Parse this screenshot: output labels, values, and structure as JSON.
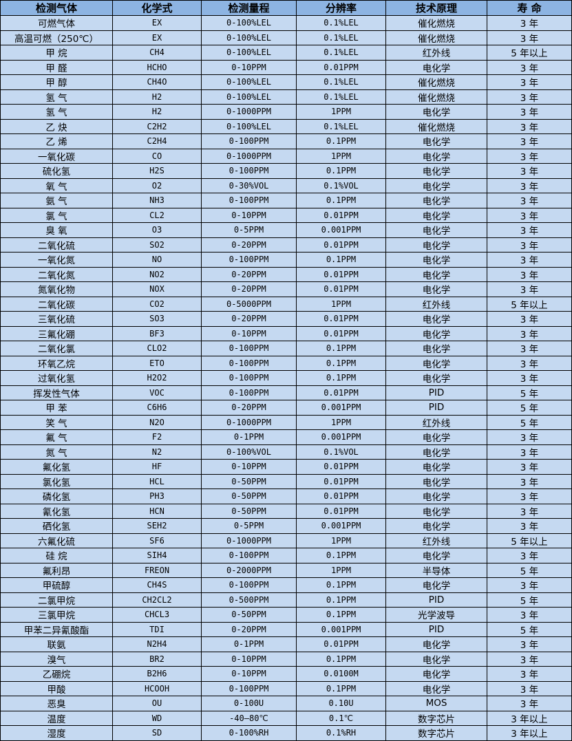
{
  "colors": {
    "header_bg": "#8db4e2",
    "cell_bg": "#c5d9f1",
    "border": "#000000"
  },
  "headers": [
    "检测气体",
    "化学式",
    "检测量程",
    "分辨率",
    "技术原理",
    "寿 命"
  ],
  "rows": [
    [
      "可燃气体",
      "EX",
      "0-100%LEL",
      "0.1%LEL",
      "催化燃烧",
      "3 年"
    ],
    [
      "高温可燃（250℃）",
      "EX",
      "0-100%LEL",
      "0.1%LEL",
      "催化燃烧",
      "3 年"
    ],
    [
      "甲 烷",
      "CH4",
      "0-100%LEL",
      "0.1%LEL",
      "红外线",
      "5 年以上"
    ],
    [
      "甲 醛",
      "HCHO",
      "0-10PPM",
      "0.01PPM",
      "电化学",
      "3 年"
    ],
    [
      "甲 醇",
      "CH4O",
      "0-100%LEL",
      "0.1%LEL",
      "催化燃烧",
      "3 年"
    ],
    [
      "氢 气",
      "H2",
      "0-100%LEL",
      "0.1%LEL",
      "催化燃烧",
      "3 年"
    ],
    [
      "氢 气",
      "H2",
      "0-1000PPM",
      "1PPM",
      "电化学",
      "3 年"
    ],
    [
      "乙 炔",
      "C2H2",
      "0-100%LEL",
      "0.1%LEL",
      "催化燃烧",
      "3 年"
    ],
    [
      "乙 烯",
      "C2H4",
      "0-100PPM",
      "0.1PPM",
      "电化学",
      "3 年"
    ],
    [
      "一氧化碳",
      "CO",
      "0-1000PPM",
      "1PPM",
      "电化学",
      "3 年"
    ],
    [
      "硫化氢",
      "H2S",
      "0-100PPM",
      "0.1PPM",
      "电化学",
      "3 年"
    ],
    [
      "氧 气",
      "O2",
      "0-30%VOL",
      "0.1%VOL",
      "电化学",
      "3 年"
    ],
    [
      "氨 气",
      "NH3",
      "0-100PPM",
      "0.1PPM",
      "电化学",
      "3 年"
    ],
    [
      "氯 气",
      "CL2",
      "0-10PPM",
      "0.01PPM",
      "电化学",
      "3 年"
    ],
    [
      "臭 氧",
      "O3",
      "0-5PPM",
      "0.001PPM",
      "电化学",
      "3 年"
    ],
    [
      "二氧化硫",
      "SO2",
      "0-20PPM",
      "0.01PPM",
      "电化学",
      "3 年"
    ],
    [
      "一氧化氮",
      "NO",
      "0-100PPM",
      "0.1PPM",
      "电化学",
      "3 年"
    ],
    [
      "二氧化氮",
      "NO2",
      "0-20PPM",
      "0.01PPM",
      "电化学",
      "3 年"
    ],
    [
      "氮氧化物",
      "NOX",
      "0-20PPM",
      "0.01PPM",
      "电化学",
      "3 年"
    ],
    [
      "二氧化碳",
      "CO2",
      "0-5000PPM",
      "1PPM",
      "红外线",
      "5 年以上"
    ],
    [
      "三氧化硫",
      "SO3",
      "0-20PPM",
      "0.01PPM",
      "电化学",
      "3 年"
    ],
    [
      "三氟化硼",
      "BF3",
      "0-10PPM",
      "0.01PPM",
      "电化学",
      "3 年"
    ],
    [
      "二氧化氯",
      "CLO2",
      "0-100PPM",
      "0.1PPM",
      "电化学",
      "3 年"
    ],
    [
      "环氧乙烷",
      "ETO",
      "0-100PPM",
      "0.1PPM",
      "电化学",
      "3 年"
    ],
    [
      "过氧化氢",
      "H2O2",
      "0-100PPM",
      "0.1PPM",
      "电化学",
      "3 年"
    ],
    [
      "挥发性气体",
      "VOC",
      "0-100PPM",
      "0.01PPM",
      "PID",
      "5 年"
    ],
    [
      "甲 苯",
      "C6H6",
      "0-20PPM",
      "0.001PPM",
      "PID",
      "5 年"
    ],
    [
      "笑 气",
      "N2O",
      "0-1000PPM",
      "1PPM",
      "红外线",
      "5 年"
    ],
    [
      "氟 气",
      "F2",
      "0-1PPM",
      "0.001PPM",
      "电化学",
      "3 年"
    ],
    [
      "氮 气",
      "N2",
      "0-100%VOL",
      "0.1%VOL",
      "电化学",
      "3 年"
    ],
    [
      "氟化氢",
      "HF",
      "0-10PPM",
      "0.01PPM",
      "电化学",
      "3 年"
    ],
    [
      "氯化氢",
      "HCL",
      "0-50PPM",
      "0.01PPM",
      "电化学",
      "3 年"
    ],
    [
      "磷化氢",
      "PH3",
      "0-50PPM",
      "0.01PPM",
      "电化学",
      "3 年"
    ],
    [
      "氰化氢",
      "HCN",
      "0-50PPM",
      "0.01PPM",
      "电化学",
      "3 年"
    ],
    [
      "硒化氢",
      "SEH2",
      "0-5PPM",
      "0.001PPM",
      "电化学",
      "3 年"
    ],
    [
      "六氟化硫",
      "SF6",
      "0-1000PPM",
      "1PPM",
      "红外线",
      "5 年以上"
    ],
    [
      "硅 烷",
      "SIH4",
      "0-100PPM",
      "0.1PPM",
      "电化学",
      "3 年"
    ],
    [
      "氟利昂",
      "FREON",
      "0-2000PPM",
      "1PPM",
      "半导体",
      "5 年"
    ],
    [
      "甲硫醇",
      "CH4S",
      "0-100PPM",
      "0.1PPM",
      "电化学",
      "3 年"
    ],
    [
      "二氯甲烷",
      "CH2CL2",
      "0-500PPM",
      "0.1PPM",
      "PID",
      "5 年"
    ],
    [
      "三氯甲烷",
      "CHCL3",
      "0-50PPM",
      "0.1PPM",
      "光学波导",
      "3 年"
    ],
    [
      "甲苯二异氰酸酯",
      "TDI",
      "0-20PPM",
      "0.001PPM",
      "PID",
      "5 年"
    ],
    [
      "联氨",
      "N2H4",
      "0-1PPM",
      "0.01PPM",
      "电化学",
      "3 年"
    ],
    [
      "溴气",
      "BR2",
      "0-10PPM",
      "0.1PPM",
      "电化学",
      "3 年"
    ],
    [
      "乙硼烷",
      "B2H6",
      "0-10PPM",
      "0.0100M",
      "电化学",
      "3 年"
    ],
    [
      "甲酸",
      "HCOOH",
      "0-100PPM",
      "0.1PPM",
      "电化学",
      "3 年"
    ],
    [
      "恶臭",
      "OU",
      "0-100U",
      "0.10U",
      "MOS",
      "3 年"
    ],
    [
      "温度",
      "WD",
      "-40—80℃",
      "0.1℃",
      "数字芯片",
      "3 年以上"
    ],
    [
      "湿度",
      "SD",
      "0-100%RH",
      "0.1%RH",
      "数字芯片",
      "3 年以上"
    ]
  ]
}
